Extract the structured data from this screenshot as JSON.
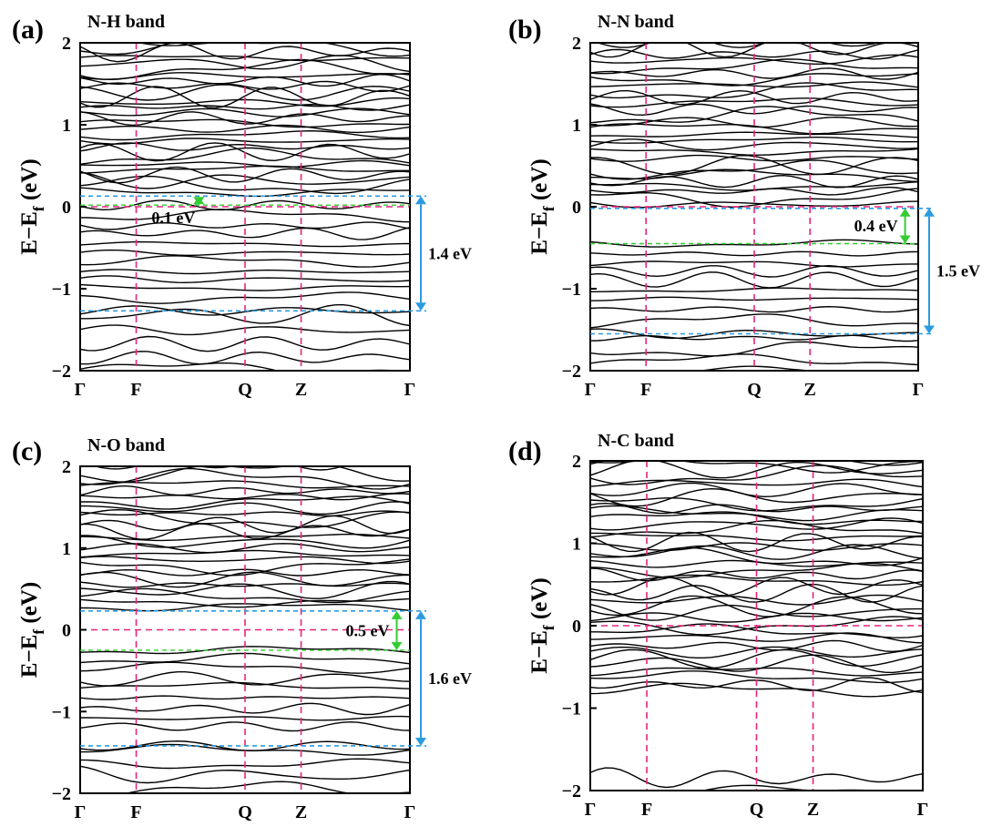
{
  "colors": {
    "band_line": "#000000",
    "kpath_line": "#e8247c",
    "gap_edge_line": "#2b9be0",
    "small_gap_arrow": "#33cc33",
    "large_gap_arrow": "#2b9be0"
  },
  "chart_data": [
    {
      "id": "a",
      "type": "line",
      "panel_label": "(a)",
      "title": "N-H band",
      "ylabel_main": "E−E",
      "ylabel_sub": "f",
      "ylabel_unit": " (eV)",
      "ylim": [
        -2,
        2
      ],
      "yticks": [
        "2",
        "1",
        "0",
        "−1",
        "−2"
      ],
      "kpoints": [
        "Γ",
        "F",
        "Q",
        "Z",
        "Γ"
      ],
      "kpoint_positions": [
        0,
        0.17,
        0.5,
        0.67,
        1
      ],
      "fermi_level": 0,
      "small_gap": {
        "label": "0.1 eV",
        "top": 0.13,
        "bottom": 0.02
      },
      "large_gap": {
        "label": "1.4 eV",
        "top": 0.13,
        "bottom": -1.27
      },
      "seed": 11
    },
    {
      "id": "b",
      "type": "line",
      "panel_label": "(b)",
      "title": "N-N band",
      "ylabel_main": "E−E",
      "ylabel_sub": "f",
      "ylabel_unit": " (eV)",
      "ylim": [
        -2,
        2
      ],
      "yticks": [
        "2",
        "1",
        "0",
        "−1",
        "−2"
      ],
      "kpoints": [
        "Γ",
        "F",
        "Q",
        "Z",
        "Γ"
      ],
      "kpoint_positions": [
        0,
        0.17,
        0.5,
        0.67,
        1
      ],
      "fermi_level": 0,
      "small_gap": {
        "label": "0.4 eV",
        "top": -0.02,
        "bottom": -0.45
      },
      "large_gap": {
        "label": "1.5 eV",
        "top": -0.02,
        "bottom": -1.55
      },
      "seed": 23
    },
    {
      "id": "c",
      "type": "line",
      "panel_label": "(c)",
      "title": "N-O band",
      "ylabel_main": "E−E",
      "ylabel_sub": "f",
      "ylabel_unit": " (eV)",
      "ylim": [
        -2,
        2
      ],
      "yticks": [
        "2",
        "1",
        "0",
        "−1",
        "−2"
      ],
      "kpoints": [
        "Γ",
        "F",
        "Q",
        "Z",
        "Γ"
      ],
      "kpoint_positions": [
        0,
        0.17,
        0.5,
        0.67,
        1
      ],
      "fermi_level": 0,
      "small_gap": {
        "label": "0.5 eV",
        "top": 0.23,
        "bottom": -0.25
      },
      "large_gap": {
        "label": "1.6 eV",
        "top": 0.23,
        "bottom": -1.42
      },
      "seed": 37
    },
    {
      "id": "d",
      "type": "line",
      "panel_label": "(d)",
      "title": "N-C band",
      "ylabel_main": "E−E",
      "ylabel_sub": "f",
      "ylabel_unit": " (eV)",
      "ylim": [
        -2,
        2
      ],
      "yticks": [
        "2",
        "1",
        "0",
        "−1",
        "−2"
      ],
      "kpoints": [
        "Γ",
        "F",
        "Q",
        "Z",
        "Γ"
      ],
      "kpoint_positions": [
        0,
        0.17,
        0.5,
        0.67,
        1
      ],
      "fermi_level": 0,
      "small_gap": null,
      "large_gap": null,
      "seed": 51
    }
  ]
}
